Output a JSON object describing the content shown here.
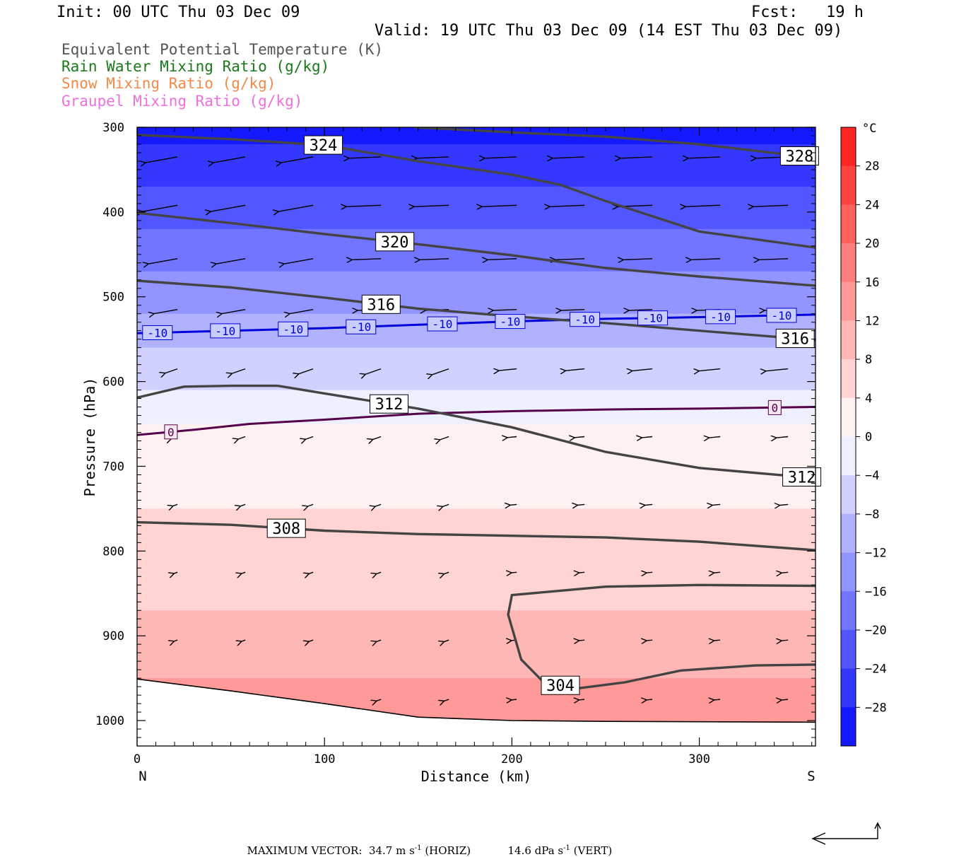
{
  "header": {
    "init": "Init: 00 UTC Thu 03 Dec 09",
    "fcst": "Fcst:   19 h",
    "valid": "Valid: 19 UTC Thu 03 Dec 09 (14 EST Thu 03 Dec 09)"
  },
  "legend": [
    {
      "label": "Equivalent Potential Temperature (K)",
      "color": "#555555"
    },
    {
      "label": "Rain Water Mixing Ratio (g/kg)",
      "color": "#1a7a1a"
    },
    {
      "label": "Snow Mixing Ratio (g/kg)",
      "color": "#f08a4a"
    },
    {
      "label": "Graupel Mixing Ratio (g/kg)",
      "color": "#ee70dd"
    }
  ],
  "chart_data": {
    "type": "heatmap",
    "xlabel": "Distance (km)",
    "ylabel": "Pressure (hPa)",
    "xlim": [
      0,
      362
    ],
    "ylim": [
      300,
      1030
    ],
    "x_ticks": [
      0,
      100,
      200,
      300
    ],
    "y_ticks": [
      300,
      400,
      500,
      600,
      700,
      800,
      900,
      1000
    ],
    "x_end_labels": {
      "left": "N",
      "right": "S"
    },
    "colorbar": {
      "unit": "°C",
      "range": [
        -32,
        32
      ],
      "step": 4,
      "labels": [
        "28",
        "24",
        "20",
        "16",
        "12",
        "8",
        "4",
        "0",
        "-4",
        "-8",
        "-12",
        "-16",
        "-20",
        "-24",
        "-28"
      ]
    },
    "temperature_profile": [
      {
        "p": 300,
        "t": -30
      },
      {
        "p": 400,
        "t": -22
      },
      {
        "p": 500,
        "t": -14
      },
      {
        "p": 550,
        "t": -9
      },
      {
        "p": 600,
        "t": -5
      },
      {
        "p": 650,
        "t": 0
      },
      {
        "p": 700,
        "t": 3
      },
      {
        "p": 800,
        "t": 5
      },
      {
        "p": 900,
        "t": 9
      },
      {
        "p": 1000,
        "t": 15
      }
    ],
    "theta_e_contours": [
      {
        "level": 324,
        "label": "324",
        "points": [
          [
            0,
            309
          ],
          [
            50,
            314
          ],
          [
            100,
            321
          ],
          [
            150,
            340
          ],
          [
            200,
            356
          ],
          [
            226,
            368
          ],
          [
            250,
            387
          ],
          [
            300,
            423
          ],
          [
            362,
            442
          ]
        ]
      },
      {
        "level": 328,
        "label": "328",
        "points": [
          [
            148,
            300
          ],
          [
            200,
            306
          ],
          [
            250,
            311
          ],
          [
            300,
            320
          ],
          [
            362,
            336
          ]
        ]
      },
      {
        "level": 320,
        "label": "320",
        "points": [
          [
            0,
            401
          ],
          [
            50,
            413
          ],
          [
            100,
            426
          ],
          [
            150,
            438
          ],
          [
            200,
            451
          ],
          [
            250,
            466
          ],
          [
            300,
            476
          ],
          [
            362,
            487
          ]
        ]
      },
      {
        "level": 316,
        "label": "316",
        "points": [
          [
            0,
            481
          ],
          [
            50,
            489
          ],
          [
            100,
            501
          ],
          [
            150,
            514
          ],
          [
            200,
            523
          ],
          [
            250,
            531
          ],
          [
            300,
            540
          ],
          [
            362,
            551
          ]
        ]
      },
      {
        "level": 312,
        "label": "312",
        "points": [
          [
            0,
            619
          ],
          [
            25,
            606
          ],
          [
            50,
            605
          ],
          [
            75,
            605
          ],
          [
            100,
            614
          ],
          [
            150,
            632
          ],
          [
            200,
            654
          ],
          [
            250,
            683
          ],
          [
            300,
            702
          ],
          [
            362,
            714
          ]
        ]
      },
      {
        "level": 308,
        "label": "308",
        "points": [
          [
            0,
            766
          ],
          [
            50,
            769
          ],
          [
            100,
            776
          ],
          [
            150,
            780
          ],
          [
            200,
            782
          ],
          [
            250,
            784
          ],
          [
            300,
            789
          ],
          [
            362,
            799
          ]
        ]
      },
      {
        "level": 304,
        "label": "304",
        "points": [
          [
            362,
            841
          ],
          [
            300,
            840
          ],
          [
            250,
            842
          ],
          [
            200,
            852
          ],
          [
            198,
            875
          ],
          [
            205,
            928
          ],
          [
            217,
            955
          ],
          [
            235,
            962
          ],
          [
            260,
            955
          ],
          [
            290,
            941
          ],
          [
            330,
            935
          ],
          [
            362,
            934
          ]
        ]
      }
    ],
    "temperature_isotherms": [
      {
        "level": -10,
        "label": "-10",
        "color": "#0000dd",
        "points": [
          [
            0,
            543
          ],
          [
            50,
            540
          ],
          [
            100,
            537
          ],
          [
            150,
            533
          ],
          [
            200,
            529
          ],
          [
            250,
            526
          ],
          [
            300,
            524
          ],
          [
            362,
            521
          ]
        ]
      },
      {
        "level": 0,
        "label": "0",
        "color": "#55004a",
        "points": [
          [
            0,
            663
          ],
          [
            30,
            657
          ],
          [
            60,
            650
          ],
          [
            100,
            645
          ],
          [
            150,
            638
          ],
          [
            200,
            635
          ],
          [
            250,
            633
          ],
          [
            300,
            632
          ],
          [
            362,
            630
          ]
        ]
      }
    ],
    "terrain_surface": [
      [
        0,
        951
      ],
      [
        50,
        965
      ],
      [
        100,
        980
      ],
      [
        150,
        996
      ],
      [
        200,
        1000
      ],
      [
        250,
        1001
      ],
      [
        362,
        1002
      ]
    ],
    "max_vector": {
      "label": "MAXIMUM VECTOR:",
      "horiz": "34.7 m s",
      "horiz_sup": "-1",
      "horiz_tag": "(HORIZ)",
      "vert": "14.6 dPa s",
      "vert_sup": "-1",
      "vert_tag": "(VERT)"
    }
  }
}
